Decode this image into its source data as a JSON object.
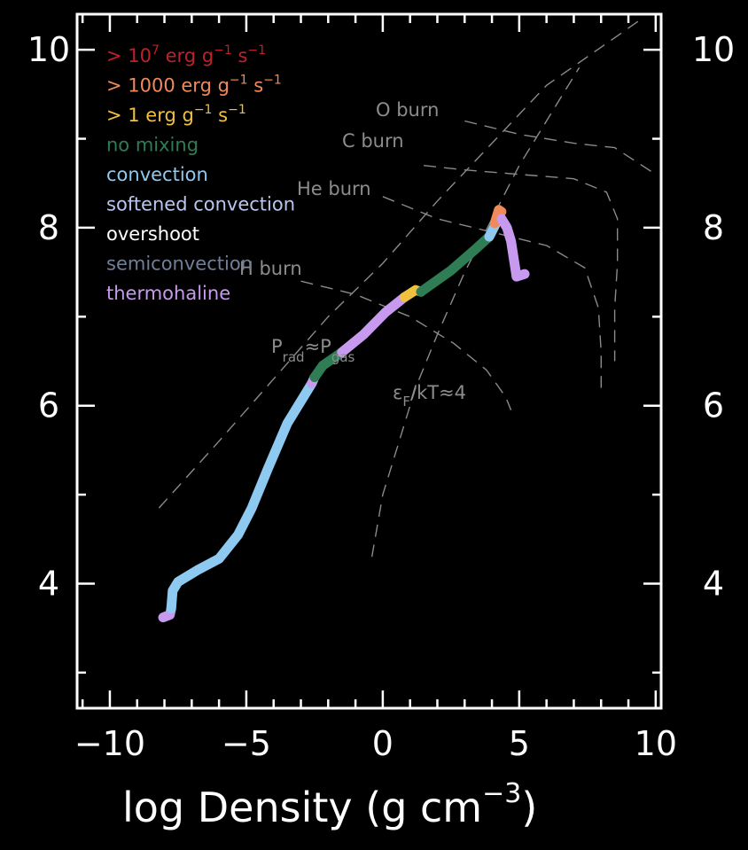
{
  "chart_data": {
    "type": "line",
    "xlabel": "log Density (g cm",
    "xlabel_exp": "−3",
    "xlabel_close": ")",
    "xlim": [
      -11.2,
      10.2
    ],
    "ylim": [
      2.6,
      10.4
    ],
    "x_ticks": [
      -10,
      -5,
      0,
      5,
      10
    ],
    "x_tick_labels": [
      "−10",
      "−5",
      "0",
      "5",
      "10"
    ],
    "y_ticks": [
      4,
      6,
      8,
      10
    ],
    "y_tick_labels": [
      "4",
      "6",
      "8",
      "10"
    ],
    "legend": [
      {
        "base": "> 10",
        "sup1": "7",
        "mid": " erg g",
        "sup2": "−1",
        "tail": " s",
        "sup3": "−1",
        "color": "#c0202a"
      },
      {
        "base": "> 1000 erg g",
        "sup1": "",
        "mid": "",
        "sup2": "−1",
        "tail": " s",
        "sup3": "−1",
        "color": "#f08a5a"
      },
      {
        "base": "> 1 erg g",
        "sup1": "",
        "mid": "",
        "sup2": "−1",
        "tail": " s",
        "sup3": "−1",
        "color": "#f0c040"
      },
      {
        "base": "no mixing",
        "color": "#2e7d55"
      },
      {
        "base": "convection",
        "color": "#8ec9f2"
      },
      {
        "base": "softened convection",
        "color": "#b9c6ee"
      },
      {
        "base": "overshoot",
        "color": "#ffffff"
      },
      {
        "base": "semiconvection",
        "color": "#6f7f9a"
      },
      {
        "base": "thermohaline",
        "color": "#c79af0"
      }
    ],
    "annotations": {
      "o_burn": "O burn",
      "c_burn": "C burn",
      "he_burn": "He burn",
      "h_burn": "H burn",
      "prad_P": "P",
      "prad_sub": "rad",
      "prad_approx": "≈P",
      "prad_sub2": "gas",
      "ef_eps": "ε",
      "ef_sub": "F",
      "ef_rest": "/kT≈4"
    },
    "reference_lines": [
      {
        "name": "prad-pgas",
        "points": [
          [
            -8.2,
            4.85
          ],
          [
            -6,
            5.6
          ],
          [
            -4,
            6.3
          ],
          [
            -2,
            7.0
          ],
          [
            0,
            7.6
          ],
          [
            2,
            8.3
          ],
          [
            4,
            8.95
          ],
          [
            6,
            9.6
          ],
          [
            9.5,
            10.35
          ]
        ]
      },
      {
        "name": "ef-kt",
        "points": [
          [
            -0.4,
            4.3
          ],
          [
            0,
            5.0
          ],
          [
            0.6,
            5.6
          ],
          [
            1.2,
            6.2
          ],
          [
            2,
            6.8
          ],
          [
            3,
            7.5
          ],
          [
            4,
            8.1
          ],
          [
            5,
            8.7
          ],
          [
            6.2,
            9.3
          ],
          [
            7.2,
            9.8
          ]
        ]
      },
      {
        "name": "o-burn",
        "points": [
          [
            3,
            9.2
          ],
          [
            5,
            9.05
          ],
          [
            7,
            8.95
          ],
          [
            8.5,
            8.9
          ],
          [
            10,
            8.6
          ]
        ]
      },
      {
        "name": "c-burn",
        "points": [
          [
            1.5,
            8.7
          ],
          [
            3,
            8.65
          ],
          [
            5,
            8.6
          ],
          [
            7,
            8.55
          ],
          [
            8.2,
            8.4
          ],
          [
            8.6,
            8.1
          ],
          [
            8.6,
            7.6
          ],
          [
            8.5,
            7.1
          ],
          [
            8.5,
            6.5
          ]
        ]
      },
      {
        "name": "he-burn",
        "points": [
          [
            0,
            8.35
          ],
          [
            2,
            8.1
          ],
          [
            4,
            7.95
          ],
          [
            6,
            7.8
          ],
          [
            7.4,
            7.55
          ],
          [
            7.9,
            7.1
          ],
          [
            8.0,
            6.6
          ],
          [
            8.0,
            6.2
          ]
        ]
      },
      {
        "name": "h-burn",
        "points": [
          [
            -3,
            7.4
          ],
          [
            -1,
            7.25
          ],
          [
            1,
            7.0
          ],
          [
            2.6,
            6.7
          ],
          [
            3.8,
            6.4
          ],
          [
            4.5,
            6.1
          ],
          [
            4.7,
            5.95
          ]
        ]
      }
    ],
    "series": [
      {
        "color": "#c79af0",
        "points": [
          [
            -8.05,
            3.62
          ],
          [
            -7.8,
            3.65
          ],
          [
            -7.75,
            3.72
          ]
        ]
      },
      {
        "color": "#8ec9f2",
        "points": [
          [
            -7.75,
            3.72
          ],
          [
            -7.7,
            3.92
          ],
          [
            -7.5,
            4.02
          ],
          [
            -6.8,
            4.15
          ],
          [
            -6.0,
            4.28
          ],
          [
            -5.3,
            4.55
          ],
          [
            -4.8,
            4.85
          ],
          [
            -4.2,
            5.3
          ],
          [
            -3.5,
            5.8
          ],
          [
            -2.6,
            6.25
          ]
        ]
      },
      {
        "color": "#c79af0",
        "points": [
          [
            -2.6,
            6.25
          ],
          [
            -2.5,
            6.32
          ]
        ]
      },
      {
        "color": "#2e7d55",
        "points": [
          [
            -2.5,
            6.32
          ],
          [
            -2.2,
            6.45
          ],
          [
            -1.5,
            6.6
          ]
        ]
      },
      {
        "color": "#c79af0",
        "points": [
          [
            -1.5,
            6.6
          ],
          [
            -0.7,
            6.8
          ],
          [
            0.1,
            7.05
          ],
          [
            0.8,
            7.22
          ]
        ]
      },
      {
        "color": "#f0c040",
        "points": [
          [
            0.8,
            7.22
          ],
          [
            1.2,
            7.3
          ],
          [
            1.4,
            7.28
          ]
        ]
      },
      {
        "color": "#2e7d55",
        "points": [
          [
            1.4,
            7.28
          ],
          [
            2.5,
            7.52
          ],
          [
            3.4,
            7.76
          ],
          [
            3.9,
            7.9
          ]
        ]
      },
      {
        "color": "#8ec9f2",
        "points": [
          [
            3.9,
            7.9
          ],
          [
            4.1,
            8.02
          ],
          [
            4.2,
            8.08
          ]
        ]
      },
      {
        "color": "#f08a5a",
        "points": [
          [
            4.1,
            8.05
          ],
          [
            4.25,
            8.2
          ],
          [
            4.35,
            8.18
          ]
        ]
      },
      {
        "color": "#c79af0",
        "points": [
          [
            4.35,
            8.1
          ],
          [
            4.55,
            8.0
          ],
          [
            4.7,
            7.85
          ],
          [
            4.85,
            7.55
          ],
          [
            4.9,
            7.45
          ],
          [
            5.2,
            7.48
          ]
        ]
      }
    ]
  }
}
